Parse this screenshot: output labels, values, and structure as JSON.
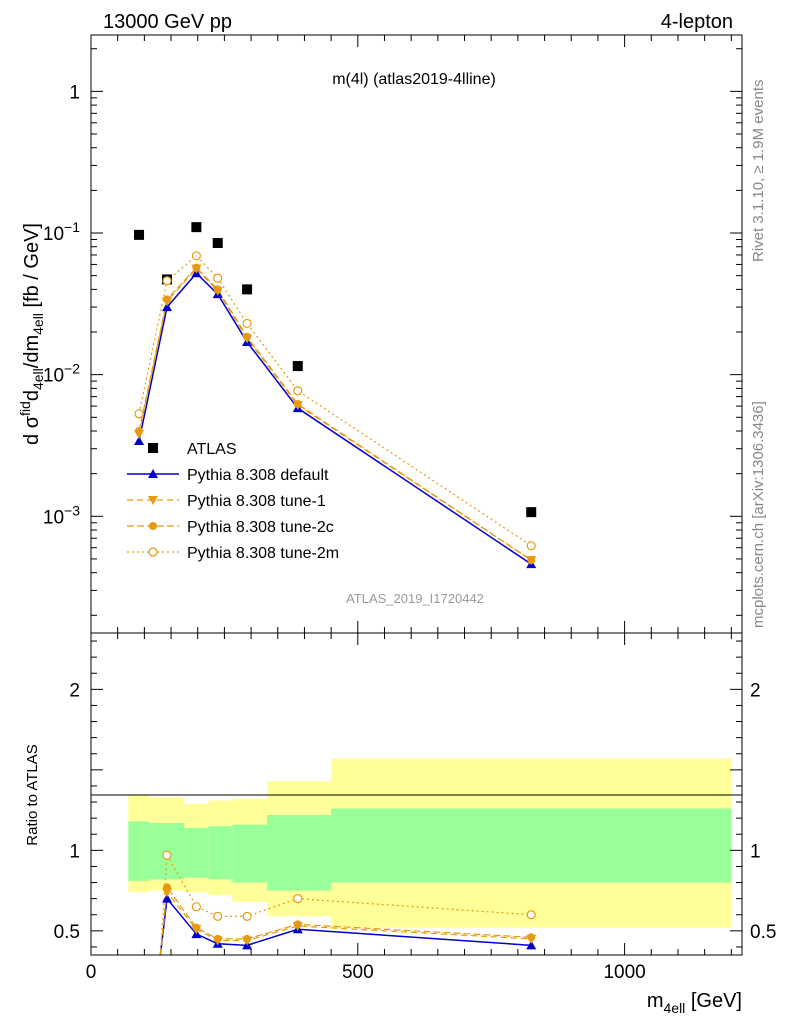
{
  "header": {
    "left": "13000 GeV pp",
    "right": "4-lepton"
  },
  "plot_title": "m(4l) (atlas2019-4lline)",
  "watermark": "ATLAS_2019_I1720442",
  "side_text": {
    "rivet": "Rivet 3.1.10, ≥ 1.9M events",
    "mcplots": "mcplots.cern.ch [arXiv:1306.3436]"
  },
  "colors": {
    "data": "#000000",
    "default": "#0000cc",
    "tune": "#e69a10",
    "band_inner": "#99ff99",
    "band_outer": "#ffff99"
  },
  "chart_data": [
    {
      "type": "scatter",
      "panel": "main",
      "ylabel": "d σᶠid₄ₑₗₗ/dm₄ₑₗₗ [fb / GeV]",
      "yscale": "log",
      "ylim": [
        0.00015,
        2.5
      ],
      "xlim": [
        0,
        1220
      ],
      "yticks": [
        {
          "value": 1,
          "label": "1"
        },
        {
          "value": 0.1,
          "label": "10^-1"
        },
        {
          "value": 0.01,
          "label": "10^-2"
        },
        {
          "value": 0.001,
          "label": "10^-3"
        }
      ],
      "legend": {
        "position": "bottom-left"
      },
      "series": [
        {
          "name": "ATLAS",
          "style": "data",
          "marker": "square",
          "x": [
            90,
            142.5,
            197.5,
            237.5,
            292.5,
            387.5,
            825
          ],
          "y": [
            0.097,
            0.047,
            0.11,
            0.085,
            0.04,
            0.0115,
            0.00107
          ]
        },
        {
          "name": "Pythia 8.308 default",
          "style": "default",
          "marker": "triangle-up",
          "dash": "",
          "x": [
            90,
            142.5,
            197.5,
            237.5,
            292.5,
            387.5,
            825
          ],
          "y": [
            0.0034,
            0.03,
            0.052,
            0.037,
            0.017,
            0.0058,
            0.00046
          ]
        },
        {
          "name": "Pythia 8.308 tune-1",
          "style": "tune",
          "marker": "triangle-down",
          "dash": "6,4",
          "x": [
            90,
            142.5,
            197.5,
            237.5,
            292.5,
            387.5,
            825
          ],
          "y": [
            0.0038,
            0.033,
            0.056,
            0.039,
            0.018,
            0.0061,
            0.00049
          ]
        },
        {
          "name": "Pythia 8.308 tune-2c",
          "style": "tune",
          "marker": "circle",
          "dash": "7,3",
          "x": [
            90,
            142.5,
            197.5,
            237.5,
            292.5,
            387.5,
            825
          ],
          "y": [
            0.004,
            0.034,
            0.057,
            0.04,
            0.0185,
            0.0062,
            0.00049
          ]
        },
        {
          "name": "Pythia 8.308 tune-2m",
          "style": "tune",
          "marker": "circle-open",
          "dash": "2,3",
          "x": [
            90,
            142.5,
            197.5,
            237.5,
            292.5,
            387.5,
            825
          ],
          "y": [
            0.0053,
            0.046,
            0.069,
            0.048,
            0.023,
            0.0077,
            0.00062
          ]
        }
      ]
    },
    {
      "type": "line",
      "panel": "ratio",
      "xlabel": "m₄ₑₗₗ [GeV]",
      "ylabel": "Ratio to ATLAS",
      "ylim": [
        0.35,
        2.35
      ],
      "xlim": [
        0,
        1220
      ],
      "xticks": [
        0,
        500,
        1000
      ],
      "yticks": [
        0.5,
        1,
        2
      ],
      "bands": {
        "edges": [
          70,
          110,
          175,
          220,
          265,
          330,
          450,
          1200
        ],
        "inner_low": [
          0.81,
          0.82,
          0.83,
          0.82,
          0.8,
          0.75,
          0.8
        ],
        "inner_high": [
          1.18,
          1.17,
          1.14,
          1.15,
          1.16,
          1.22,
          1.26
        ],
        "outer_low": [
          0.74,
          0.75,
          0.74,
          0.72,
          0.68,
          0.59,
          0.52
        ],
        "outer_high": [
          1.34,
          1.33,
          1.29,
          1.31,
          1.32,
          1.43,
          1.57
        ]
      },
      "series": [
        {
          "name": "Pythia 8.308 default",
          "style": "default",
          "marker": "triangle-up",
          "dash": "",
          "x": [
            130,
            142.5,
            197.5,
            237.5,
            292.5,
            387.5,
            825
          ],
          "y": [
            0.3,
            0.7,
            0.48,
            0.42,
            0.41,
            0.51,
            0.41
          ]
        },
        {
          "name": "Pythia 8.308 tune-1",
          "style": "tune",
          "marker": "triangle-down",
          "dash": "6,4",
          "x": [
            130,
            142.5,
            197.5,
            237.5,
            292.5,
            387.5,
            825
          ],
          "y": [
            0.3,
            0.74,
            0.51,
            0.44,
            0.44,
            0.53,
            0.45
          ]
        },
        {
          "name": "Pythia 8.308 tune-2c",
          "style": "tune",
          "marker": "circle",
          "dash": "7,3",
          "x": [
            130,
            142.5,
            197.5,
            237.5,
            292.5,
            387.5,
            825
          ],
          "y": [
            0.3,
            0.77,
            0.52,
            0.45,
            0.45,
            0.54,
            0.46
          ]
        },
        {
          "name": "Pythia 8.308 tune-2m",
          "style": "tune",
          "marker": "circle-open",
          "dash": "2,3",
          "x": [
            130,
            142.5,
            197.5,
            237.5,
            292.5,
            387.5,
            825
          ],
          "y": [
            0.3,
            0.97,
            0.65,
            0.59,
            0.59,
            0.7,
            0.6
          ]
        }
      ]
    }
  ]
}
